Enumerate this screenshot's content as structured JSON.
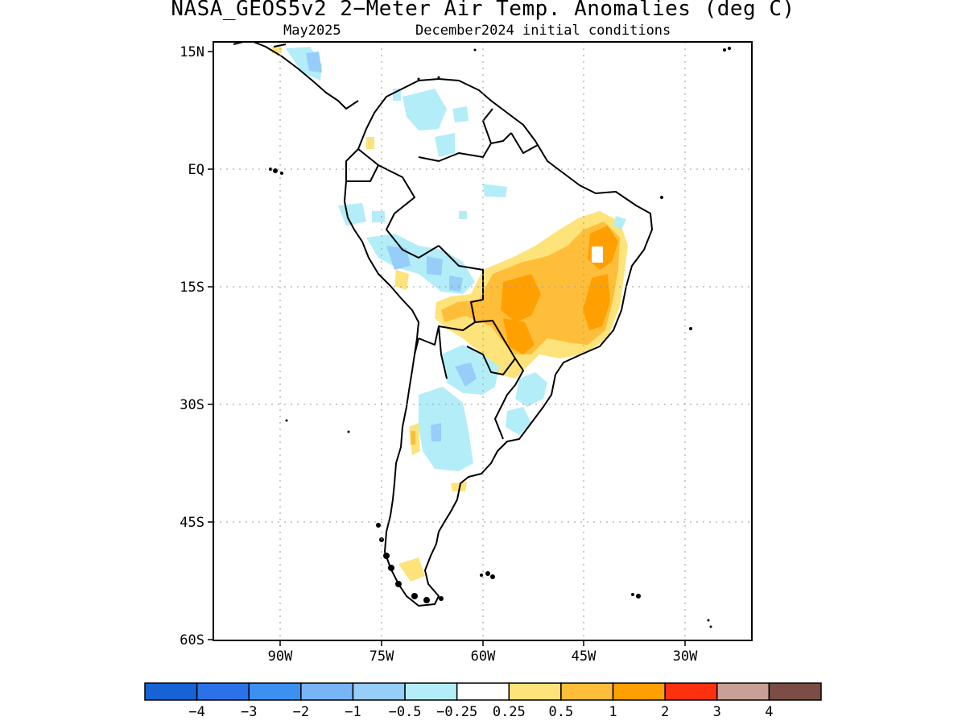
{
  "title": "NASA_GEOS5v2 2−Meter Air Temp. Anomalies (deg C)",
  "subtitle_left": "May2025",
  "subtitle_right": "December2024 initial conditions",
  "map": {
    "lat_labels": [
      "15N",
      "EQ",
      "15S",
      "30S",
      "45S",
      "60S"
    ],
    "lon_labels": [
      "90W",
      "75W",
      "60W",
      "45W",
      "30W"
    ]
  },
  "colorbar": {
    "colors": [
      "#1763d5",
      "#2b71ea",
      "#3c90f0",
      "#78b5f7",
      "#96cdf9",
      "#b3eef8",
      "#ffffff",
      "#fde37a",
      "#ffbe3a",
      "#ffa000",
      "#ff3010",
      "#c9a095",
      "#7b4d44"
    ],
    "labels": [
      "−4",
      "−3",
      "−2",
      "−1",
      "−0.5",
      "−0.25",
      "0.25",
      "0.5",
      "1",
      "2",
      "3",
      "4"
    ]
  },
  "anomaly_regions": [
    {
      "name": "brazil-warm-core",
      "color": "#ffbe3a"
    },
    {
      "name": "brazil-warm-edge",
      "color": "#fde37a"
    },
    {
      "name": "brazil-northeast-warm",
      "color": "#ffa000"
    },
    {
      "name": "argentina-cool",
      "color": "#b3eef8"
    },
    {
      "name": "peru-bolivia-cool",
      "color": "#96cdf9"
    }
  ]
}
